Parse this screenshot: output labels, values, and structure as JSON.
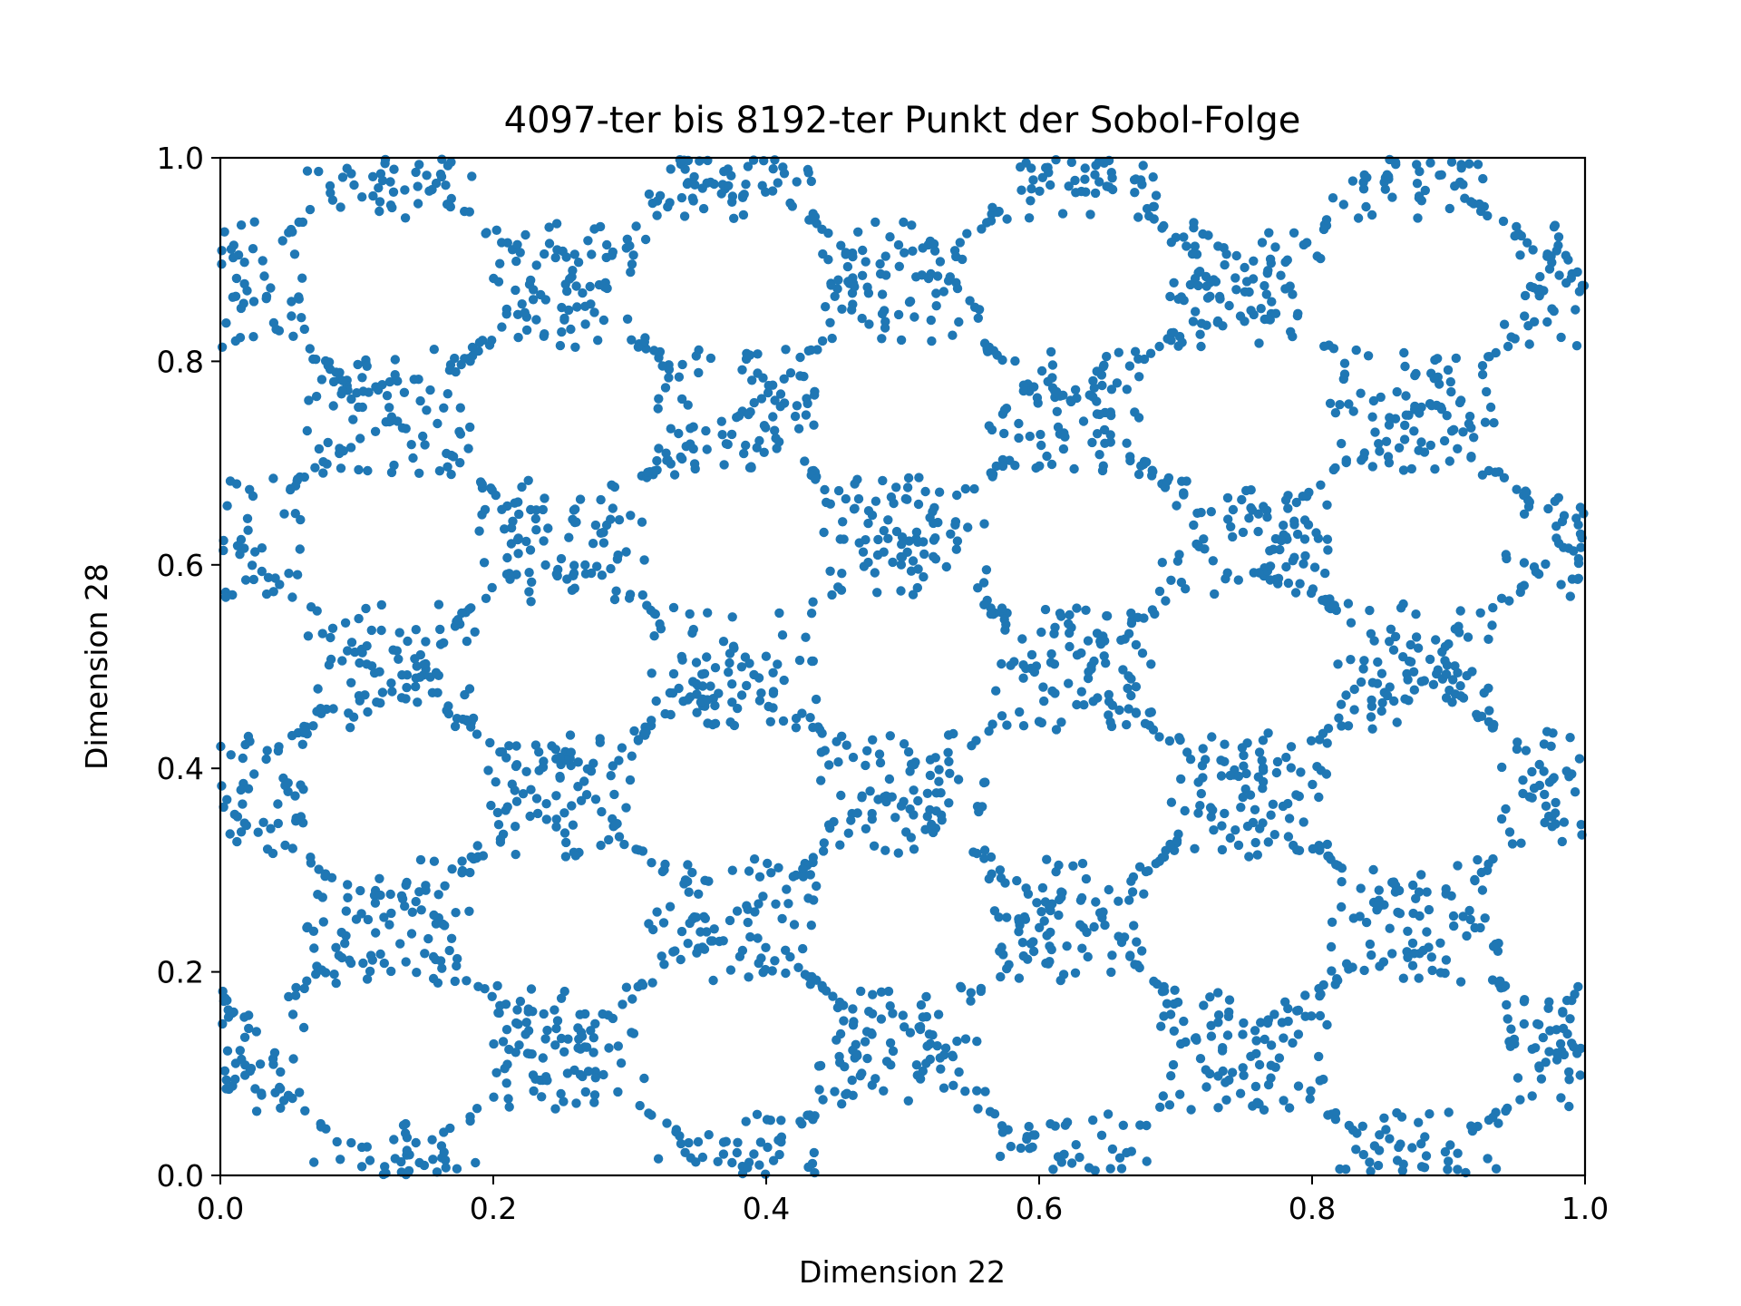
{
  "chart_data": {
    "type": "scatter",
    "title": "4097-ter bis 8192-ter Punkt der Sobol-Folge",
    "xlabel": "Dimension 22",
    "ylabel": "Dimension 28",
    "xlim": [
      0.0,
      1.0
    ],
    "ylim": [
      0.0,
      1.0
    ],
    "xticks": [
      "0.0",
      "0.2",
      "0.4",
      "0.6",
      "0.8",
      "1.0"
    ],
    "yticks": [
      "0.0",
      "0.2",
      "0.4",
      "0.6",
      "0.8",
      "1.0"
    ],
    "grid": false,
    "legend": "none",
    "point_color": "#1f77b4",
    "point_count": 4096,
    "pattern": "checkerboard of dense point clusters; cluster centers at x ≈ 0.0, 0.25, 0.5, 0.75, 1.0 with y ≈ 0.125, 0.375, 0.625, 0.875 and at x ≈ 0.125, 0.375, 0.625, 0.875 with y ≈ 0.0, 0.25, 0.5, 0.75, 1.0"
  }
}
